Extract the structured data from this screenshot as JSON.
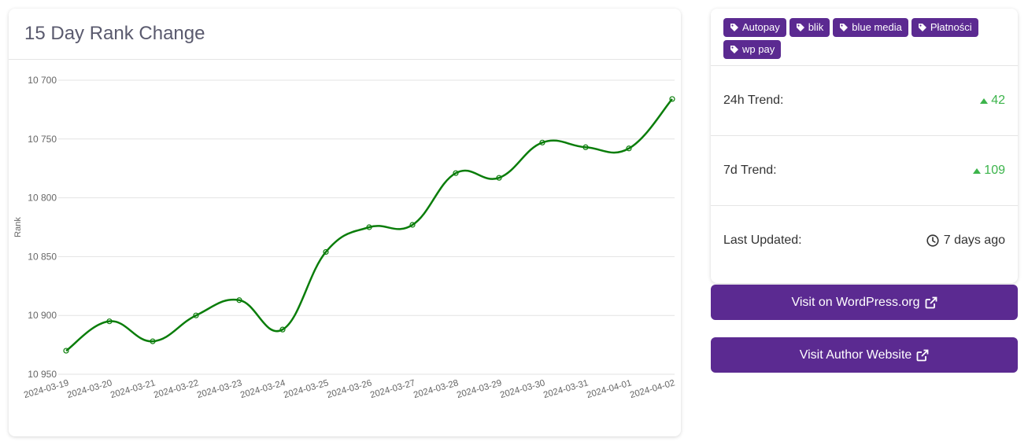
{
  "chart_card": {
    "title": "15 Day Rank Change"
  },
  "chart_data": {
    "type": "line",
    "title": "15 Day Rank Change",
    "xlabel": "",
    "ylabel": "Rank",
    "y_reversed": true,
    "ylim": [
      10700,
      10950
    ],
    "yticks": [
      10700,
      10750,
      10800,
      10850,
      10900,
      10950
    ],
    "ytick_labels": [
      "10 700",
      "10 750",
      "10 800",
      "10 850",
      "10 900",
      "10 950"
    ],
    "grid": true,
    "line_color": "#0a7d0a",
    "x": [
      "2024-03-19",
      "2024-03-20",
      "2024-03-21",
      "2024-03-22",
      "2024-03-23",
      "2024-03-24",
      "2024-03-25",
      "2024-03-26",
      "2024-03-27",
      "2024-03-28",
      "2024-03-29",
      "2024-03-30",
      "2024-03-31",
      "2024-04-01",
      "2024-04-02"
    ],
    "series": [
      {
        "values": [
          10930,
          10905,
          10922,
          10900,
          10887,
          10912,
          10846,
          10825,
          10823,
          10779,
          10783,
          10753,
          10757,
          10758,
          10716
        ]
      }
    ]
  },
  "tags": [
    {
      "label": "Autopay"
    },
    {
      "label": "blik"
    },
    {
      "label": "blue media"
    },
    {
      "label": "Płatności"
    },
    {
      "label": "wp pay"
    }
  ],
  "trend_24h": {
    "label": "24h Trend:",
    "value": "42"
  },
  "trend_7d": {
    "label": "7d Trend:",
    "value": "109"
  },
  "last_updated": {
    "label": "Last Updated:",
    "value": "7 days ago"
  },
  "buttons": {
    "wordpress": "Visit on WordPress.org",
    "author": "Visit Author Website"
  },
  "colors": {
    "accent": "#5b2a91",
    "trend_up": "#3cb44b",
    "line": "#0a7d0a"
  },
  "icons": {
    "tag": "tag-icon",
    "trend_up": "caret-up-icon",
    "clock": "clock-icon",
    "external": "external-link-icon"
  }
}
